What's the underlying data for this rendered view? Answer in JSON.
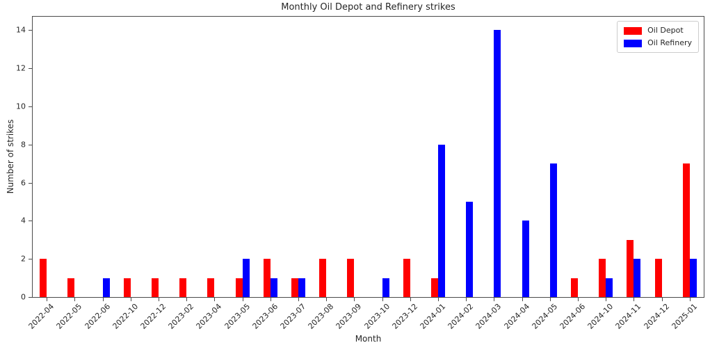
{
  "chart_data": {
    "type": "bar",
    "title": "Monthly Oil Depot and Refinery strikes",
    "xlabel": "Month",
    "ylabel": "Number of strikes",
    "categories": [
      "2022-04",
      "2022-05",
      "2022-06",
      "2022-10",
      "2022-12",
      "2023-02",
      "2023-04",
      "2023-05",
      "2023-06",
      "2023-07",
      "2023-08",
      "2023-09",
      "2023-10",
      "2023-12",
      "2024-01",
      "2024-02",
      "2024-03",
      "2024-04",
      "2024-05",
      "2024-06",
      "2024-10",
      "2024-11",
      "2024-12",
      "2025-01"
    ],
    "series": [
      {
        "name": "Oil Depot",
        "color": "#ff0000",
        "values": [
          2,
          1,
          0,
          1,
          1,
          1,
          1,
          1,
          2,
          1,
          2,
          2,
          0,
          2,
          1,
          0,
          0,
          0,
          0,
          1,
          2,
          3,
          2,
          7
        ]
      },
      {
        "name": "Oil Refinery",
        "color": "#0000ff",
        "values": [
          0,
          0,
          1,
          0,
          0,
          0,
          0,
          2,
          1,
          1,
          0,
          0,
          1,
          0,
          8,
          5,
          14,
          4,
          7,
          0,
          1,
          2,
          0,
          2
        ]
      }
    ],
    "ylim": [
      0,
      14.7
    ],
    "yticks": [
      0,
      2,
      4,
      6,
      8,
      10,
      12,
      14
    ],
    "grid": false,
    "legend_position": "upper right",
    "bar_width_fraction": 0.25
  }
}
